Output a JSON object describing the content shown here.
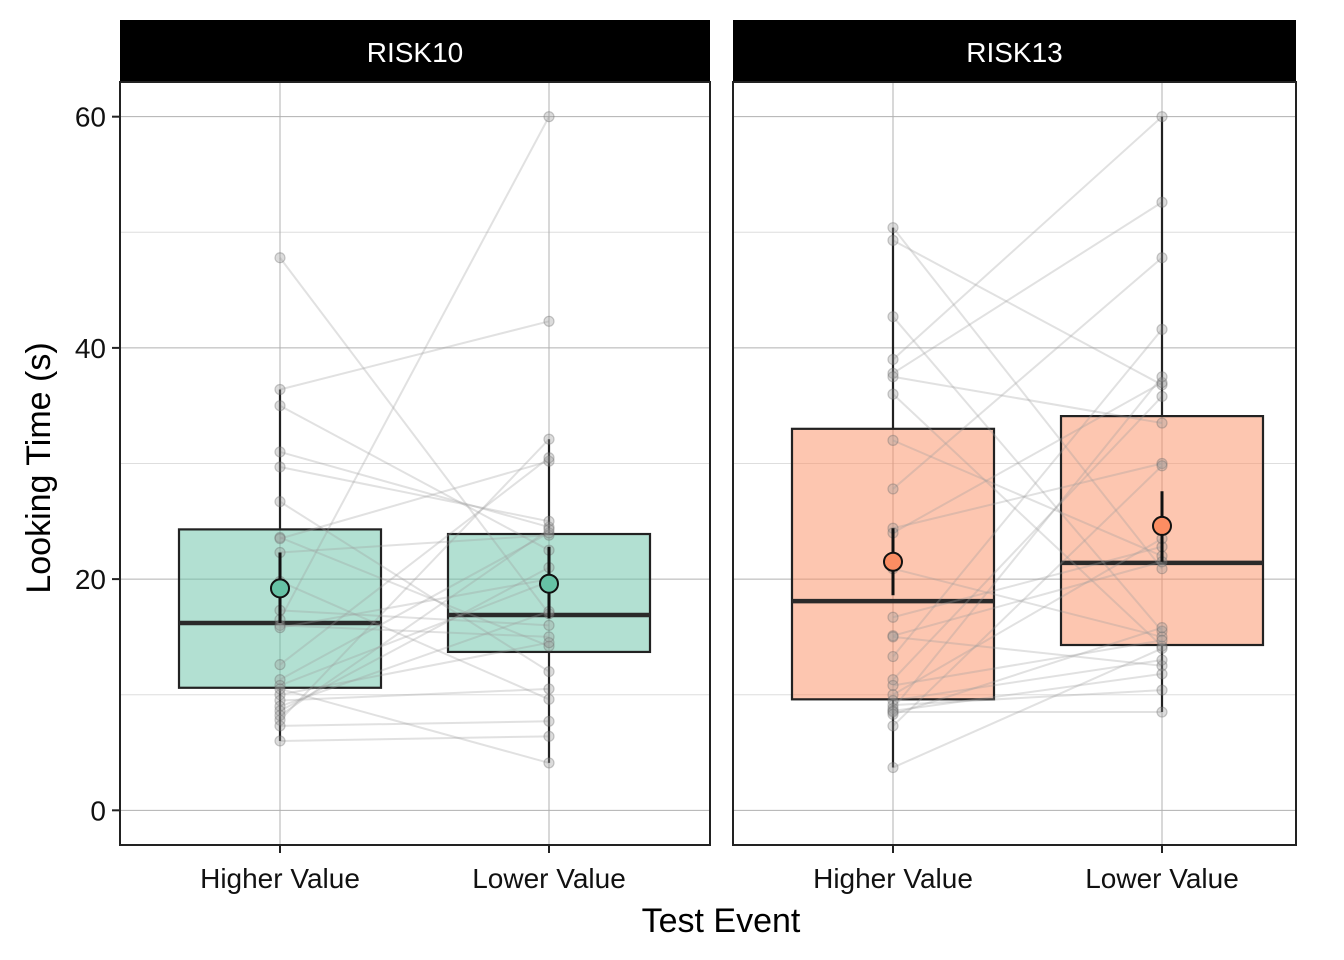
{
  "chart_data": {
    "type": "box",
    "xlabel": "Test Event",
    "ylabel": "Looking Time (s)",
    "ylim": [
      -3,
      63
    ],
    "yticks": [
      0,
      20,
      40,
      60
    ],
    "grid": true,
    "categories": [
      "Higher Value",
      "Lower Value"
    ],
    "panels": [
      {
        "name": "RISK10",
        "color": "#66c2a5",
        "boxes": [
          {
            "category": "Higher Value",
            "q1": 10.6,
            "median": 16.2,
            "q3": 24.3,
            "whisker_low": 6.0,
            "whisker_high": 36.4,
            "mean": 19.2,
            "ci": [
              16.2,
              22.3
            ]
          },
          {
            "category": "Lower Value",
            "q1": 13.7,
            "median": 16.9,
            "q3": 23.9,
            "whisker_low": 4.1,
            "whisker_high": 32.1,
            "mean": 19.6,
            "ci": [
              16.6,
              22.8
            ]
          }
        ],
        "pairs": [
          [
            47.8,
            17.0
          ],
          [
            36.4,
            42.3
          ],
          [
            35.0,
            22.5
          ],
          [
            31.0,
            24.5
          ],
          [
            29.7,
            25.0
          ],
          [
            26.7,
            12.0
          ],
          [
            23.6,
            14.2
          ],
          [
            23.5,
            30.2
          ],
          [
            22.3,
            23.8
          ],
          [
            19.8,
            9.6
          ],
          [
            17.3,
            16.0
          ],
          [
            16.5,
            60.0
          ],
          [
            16.0,
            15.0
          ],
          [
            15.8,
            20.0
          ],
          [
            12.6,
            30.5
          ],
          [
            11.3,
            24.0
          ],
          [
            10.8,
            19.8
          ],
          [
            10.0,
            14.5
          ],
          [
            9.5,
            10.5
          ],
          [
            9.0,
            17.2
          ],
          [
            8.6,
            21.0
          ],
          [
            7.8,
            32.1
          ],
          [
            7.3,
            7.7
          ],
          [
            6.0,
            6.4
          ],
          [
            8.2,
            24.3
          ],
          [
            10.5,
            4.1
          ]
        ]
      },
      {
        "name": "RISK13",
        "color": "#fc8d62",
        "boxes": [
          {
            "category": "Higher Value",
            "q1": 9.6,
            "median": 18.1,
            "q3": 33.0,
            "whisker_low": 3.7,
            "whisker_high": 50.4,
            "mean": 21.5,
            "ci": [
              18.6,
              24.4
            ]
          },
          {
            "category": "Lower Value",
            "q1": 14.3,
            "median": 21.4,
            "q3": 34.1,
            "whisker_low": 8.5,
            "whisker_high": 60.0,
            "mean": 24.6,
            "ci": [
              21.5,
              27.6
            ]
          }
        ],
        "pairs": [
          [
            50.4,
            20.9
          ],
          [
            49.3,
            36.8
          ],
          [
            42.7,
            15.5
          ],
          [
            39.0,
            60.0
          ],
          [
            37.8,
            52.6
          ],
          [
            37.5,
            33.5
          ],
          [
            36.0,
            14.2
          ],
          [
            32.0,
            22.0
          ],
          [
            27.8,
            47.8
          ],
          [
            24.4,
            30.0
          ],
          [
            24.0,
            37.0
          ],
          [
            20.9,
            15.0
          ],
          [
            16.7,
            22.8
          ],
          [
            15.1,
            21.5
          ],
          [
            15.0,
            12.5
          ],
          [
            13.3,
            41.6
          ],
          [
            11.3,
            35.8
          ],
          [
            10.8,
            14.7
          ],
          [
            10.0,
            23.5
          ],
          [
            9.5,
            13.0
          ],
          [
            9.1,
            10.4
          ],
          [
            8.8,
            37.5
          ],
          [
            8.6,
            11.8
          ],
          [
            8.5,
            8.5
          ],
          [
            8.3,
            15.8
          ],
          [
            7.3,
            29.8
          ],
          [
            3.7,
            14.0
          ]
        ]
      }
    ]
  }
}
